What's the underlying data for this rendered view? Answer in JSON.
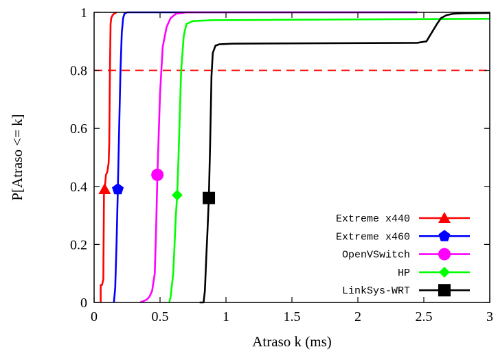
{
  "chart_data": {
    "type": "line",
    "title": "",
    "xlabel": "Atraso k (ms)",
    "ylabel": "P[Atraso <= k]",
    "xlim": [
      0,
      3
    ],
    "ylim": [
      0,
      1
    ],
    "x_ticks": [
      "0",
      "0.5",
      "1",
      "1.5",
      "2",
      "2.5",
      "3"
    ],
    "y_ticks": [
      "0",
      "0.2",
      "0.4",
      "0.6",
      "0.8",
      "1"
    ],
    "legend_position": "bottom-right",
    "grid": false,
    "reference_line": {
      "y": 0.8,
      "style": "dashed",
      "color": "#ff0000"
    },
    "series": [
      {
        "name": "Extreme x440",
        "color": "#ff0000",
        "marker": "triangle",
        "marker_point": [
          0.08,
          0.39
        ],
        "x": [
          0.05,
          0.05,
          0.06,
          0.07,
          0.075,
          0.08,
          0.09,
          0.1,
          0.11,
          0.115,
          0.12,
          0.125,
          0.13,
          0.14,
          0.15,
          0.17
        ],
        "y": [
          0.0,
          0.06,
          0.06,
          0.08,
          0.38,
          0.39,
          0.44,
          0.45,
          0.48,
          0.55,
          0.8,
          0.96,
          0.98,
          0.99,
          0.995,
          1.0
        ]
      },
      {
        "name": "Extreme x460",
        "color": "#0000ff",
        "marker": "pentagon",
        "marker_point": [
          0.18,
          0.39
        ],
        "x": [
          0.15,
          0.16,
          0.17,
          0.18,
          0.19,
          0.2,
          0.21,
          0.22,
          0.23,
          0.25,
          2.45
        ],
        "y": [
          0.0,
          0.05,
          0.2,
          0.39,
          0.6,
          0.8,
          0.93,
          0.98,
          0.995,
          1.0,
          1.0
        ]
      },
      {
        "name": "OpenVSwitch",
        "color": "#ff00ff",
        "marker": "circle",
        "marker_point": [
          0.48,
          0.44
        ],
        "x": [
          0.35,
          0.4,
          0.42,
          0.44,
          0.46,
          0.47,
          0.48,
          0.49,
          0.5,
          0.52,
          0.55,
          0.58,
          0.62,
          0.7,
          2.45
        ],
        "y": [
          0.0,
          0.01,
          0.02,
          0.04,
          0.1,
          0.25,
          0.44,
          0.58,
          0.72,
          0.88,
          0.95,
          0.98,
          0.995,
          1.0,
          1.0
        ]
      },
      {
        "name": "HP",
        "color": "#00ff00",
        "marker": "diamond",
        "marker_point": [
          0.63,
          0.37
        ],
        "x": [
          0.57,
          0.58,
          0.6,
          0.62,
          0.63,
          0.64,
          0.65,
          0.66,
          0.68,
          0.7,
          0.75,
          0.9,
          3.0
        ],
        "y": [
          0.0,
          0.02,
          0.1,
          0.3,
          0.37,
          0.5,
          0.65,
          0.8,
          0.92,
          0.96,
          0.97,
          0.973,
          0.978
        ]
      },
      {
        "name": "LinkSys-WRT",
        "color": "#000000",
        "marker": "square",
        "marker_point": [
          0.87,
          0.36
        ],
        "x": [
          0.8,
          0.83,
          0.84,
          0.85,
          0.86,
          0.87,
          0.88,
          0.89,
          0.9,
          0.92,
          0.95,
          1.05,
          2.45,
          2.52,
          2.56,
          2.6,
          2.63,
          2.67,
          2.72,
          2.8,
          3.0
        ],
        "y": [
          0.0,
          0.0,
          0.04,
          0.15,
          0.25,
          0.36,
          0.55,
          0.78,
          0.86,
          0.885,
          0.89,
          0.892,
          0.895,
          0.9,
          0.93,
          0.96,
          0.98,
          0.99,
          0.995,
          0.997,
          0.998
        ]
      }
    ]
  }
}
